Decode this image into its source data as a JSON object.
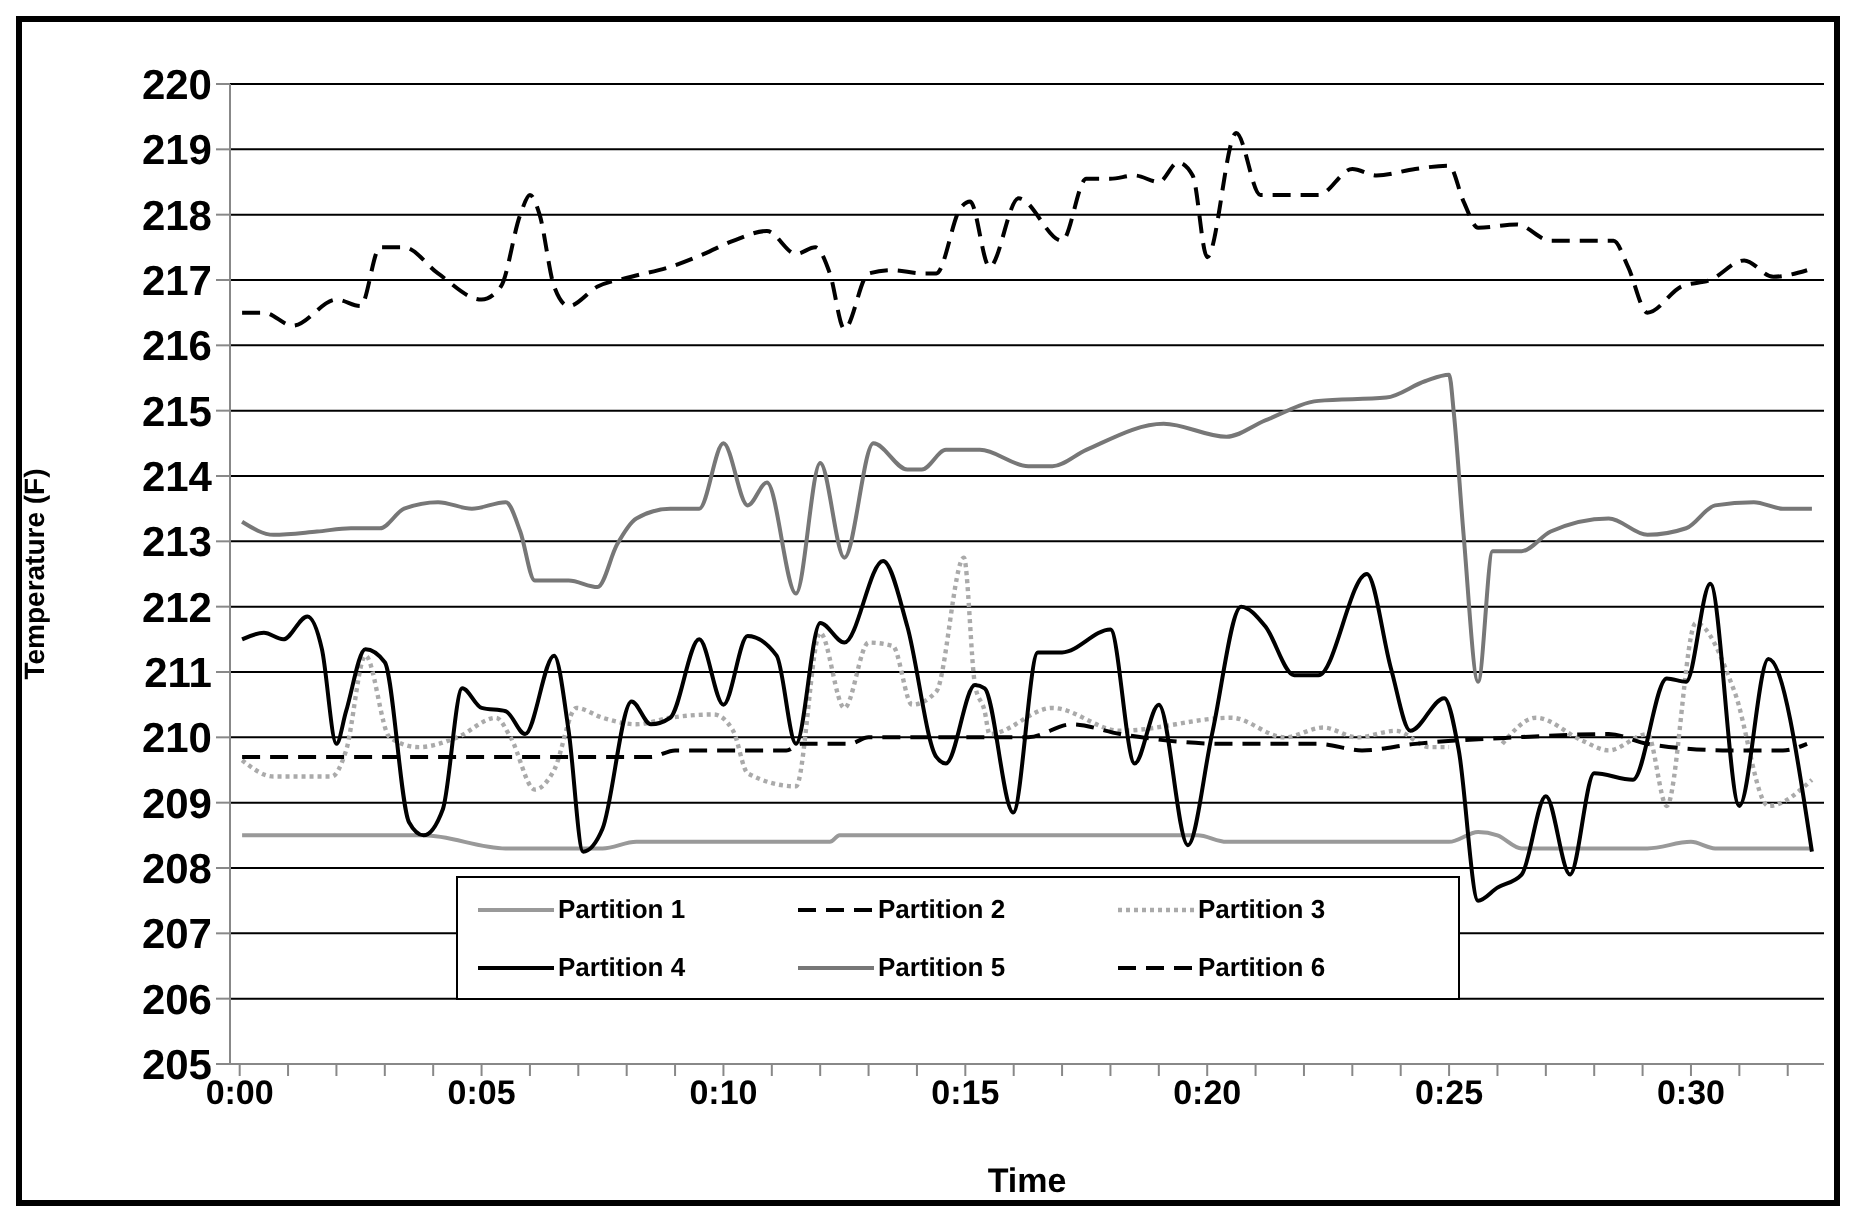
{
  "chart_data": {
    "type": "line",
    "xlabel": "Time",
    "ylabel": "Temperature (F)",
    "xlim": [
      -0.2,
      32.75
    ],
    "ylim": [
      205,
      220
    ],
    "yticks": [
      205,
      206,
      207,
      208,
      209,
      210,
      211,
      212,
      213,
      214,
      215,
      216,
      217,
      218,
      219,
      220
    ],
    "xticks": [
      {
        "value": 0,
        "label": "0:00"
      },
      {
        "value": 1,
        "label": null
      },
      {
        "value": 2,
        "label": null
      },
      {
        "value": 3,
        "label": null
      },
      {
        "value": 4,
        "label": null
      },
      {
        "value": 5,
        "label": "0:05"
      },
      {
        "value": 6,
        "label": null
      },
      {
        "value": 7,
        "label": null
      },
      {
        "value": 8,
        "label": null
      },
      {
        "value": 9,
        "label": null
      },
      {
        "value": 10,
        "label": "0:10"
      },
      {
        "value": 11,
        "label": null
      },
      {
        "value": 12,
        "label": null
      },
      {
        "value": 13,
        "label": null
      },
      {
        "value": 14,
        "label": null
      },
      {
        "value": 15,
        "label": "0:15"
      },
      {
        "value": 16,
        "label": null
      },
      {
        "value": 17,
        "label": null
      },
      {
        "value": 18,
        "label": null
      },
      {
        "value": 19,
        "label": null
      },
      {
        "value": 20,
        "label": "0:20"
      },
      {
        "value": 21,
        "label": null
      },
      {
        "value": 22,
        "label": null
      },
      {
        "value": 23,
        "label": null
      },
      {
        "value": 24,
        "label": null
      },
      {
        "value": 25,
        "label": "0:25"
      },
      {
        "value": 26,
        "label": null
      },
      {
        "value": 27,
        "label": null
      },
      {
        "value": 28,
        "label": null
      },
      {
        "value": 29,
        "label": null
      },
      {
        "value": 30,
        "label": "0:30"
      },
      {
        "value": 31,
        "label": null
      },
      {
        "value": 32,
        "label": null
      }
    ],
    "grid": "y",
    "legend": "bottom",
    "marker": "none",
    "series": [
      {
        "name": "Partition 1",
        "color": "#999999",
        "line_style": "solid",
        "x": [
          0.05,
          3.8,
          5.5,
          7.5,
          8.2,
          12.2,
          12.4,
          14.4,
          19.8,
          20.4,
          25.0,
          25.6,
          26.0,
          26.5,
          29.1,
          30.0,
          30.5,
          32.5
        ],
        "values": [
          208.5,
          208.5,
          208.3,
          208.3,
          208.4,
          208.4,
          208.5,
          208.5,
          208.5,
          208.4,
          208.4,
          208.55,
          208.5,
          208.3,
          208.3,
          208.4,
          208.3,
          208.3
        ]
      },
      {
        "name": "Partition 2",
        "color": "#000000",
        "line_style": "dashed",
        "x": [
          0.05,
          0.5,
          1.1,
          2.0,
          2.5,
          2.9,
          3.4,
          4.1,
          5.0,
          5.4,
          5.8,
          6.0,
          6.2,
          6.5,
          6.8,
          7.4,
          8.1,
          8.9,
          9.6,
          10.2,
          10.9,
          11.5,
          11.9,
          12.2,
          12.5,
          13.0,
          13.5,
          14.1,
          14.4,
          14.9,
          15.1,
          15.5,
          16.1,
          17.0,
          17.5,
          18.0,
          18.5,
          19.0,
          19.4,
          19.7,
          20.0,
          20.6,
          21.1,
          22.3,
          23.0,
          23.5,
          24.3,
          25.0,
          25.3,
          25.6,
          26.4,
          27.1,
          28.4,
          28.7,
          29.1,
          29.8,
          30.4,
          31.1,
          31.7,
          32.4
        ],
        "values": [
          216.5,
          216.5,
          216.3,
          216.7,
          216.6,
          217.5,
          217.5,
          217.1,
          216.7,
          216.9,
          218.0,
          218.3,
          218.0,
          216.9,
          216.6,
          216.9,
          217.05,
          217.2,
          217.4,
          217.6,
          217.75,
          217.4,
          217.5,
          217.1,
          216.25,
          217.1,
          217.15,
          217.1,
          217.1,
          218.1,
          218.2,
          217.2,
          218.25,
          217.6,
          218.55,
          218.55,
          218.6,
          218.5,
          218.8,
          218.6,
          217.35,
          219.25,
          218.3,
          218.3,
          218.7,
          218.6,
          218.7,
          218.75,
          218.2,
          217.8,
          217.85,
          217.6,
          217.6,
          217.2,
          216.5,
          216.9,
          217.0,
          217.3,
          217.05,
          217.15
        ]
      },
      {
        "name": "Partition 3",
        "color": "#aaaaaa",
        "line_style": "dotted",
        "x": [
          0.05,
          0.7,
          1.9,
          2.2,
          2.6,
          3.1,
          3.7,
          4.5,
          5.3,
          5.6,
          6.1,
          6.5,
          6.96,
          7.5,
          8.2,
          8.9,
          9.8,
          10.2,
          10.5,
          11.5,
          12.0,
          12.5,
          13.0,
          13.5,
          13.9,
          14.4,
          14.97,
          15.2,
          15.4,
          15.5,
          16.8,
          18.2,
          20.5,
          21.6,
          22.4,
          23.1,
          23.9,
          24.6,
          25.0,
          25.3,
          25.7,
          26.1,
          26.8,
          27.75,
          28.3,
          29.1,
          29.5,
          30.1,
          30.9,
          31.6,
          32.5
        ],
        "values": [
          209.65,
          209.4,
          209.4,
          209.8,
          211.25,
          210.0,
          209.85,
          210.0,
          210.3,
          210.0,
          209.2,
          209.5,
          210.45,
          210.3,
          210.2,
          210.3,
          210.35,
          210.1,
          209.45,
          209.25,
          211.6,
          210.45,
          211.45,
          211.4,
          210.5,
          210.7,
          212.75,
          210.8,
          210.4,
          210.05,
          210.45,
          210.1,
          210.3,
          210.0,
          210.15,
          210.0,
          210.1,
          209.85,
          209.85,
          null,
          null,
          209.9,
          210.3,
          209.95,
          209.8,
          210.05,
          208.95,
          211.75,
          210.7,
          208.95,
          209.35
        ]
      },
      {
        "name": "Partition 4",
        "color": "#000000",
        "line_style": "solid",
        "x": [
          0.05,
          0.5,
          0.9,
          1.4,
          1.7,
          2.0,
          2.2,
          2.6,
          3.0,
          3.5,
          3.8,
          4.2,
          4.6,
          5.0,
          5.5,
          5.9,
          6.5,
          6.8,
          7.1,
          7.5,
          8.1,
          8.5,
          8.9,
          9.5,
          10.0,
          10.5,
          11.1,
          11.5,
          12.0,
          12.5,
          13.3,
          13.8,
          14.4,
          14.6,
          15.2,
          15.4,
          15.99,
          16.5,
          17.0,
          18.0,
          18.5,
          19.0,
          19.6,
          20.1,
          20.7,
          21.2,
          21.8,
          22.3,
          23.3,
          23.8,
          24.2,
          24.9,
          25.2,
          25.6,
          26.0,
          26.5,
          27.0,
          27.5,
          28.0,
          28.8,
          29.5,
          29.9,
          30.4,
          31.0,
          31.6,
          32.5
        ],
        "values": [
          211.5,
          211.6,
          211.5,
          211.85,
          211.35,
          209.9,
          210.4,
          211.35,
          211.15,
          208.7,
          208.5,
          208.9,
          210.75,
          210.45,
          210.4,
          210.05,
          211.25,
          210.1,
          208.25,
          208.6,
          210.55,
          210.2,
          210.3,
          211.5,
          210.5,
          211.55,
          211.25,
          209.9,
          211.75,
          211.45,
          212.7,
          211.7,
          209.7,
          209.6,
          210.8,
          210.75,
          208.85,
          211.3,
          211.3,
          211.65,
          209.6,
          210.5,
          208.35,
          210.05,
          212.0,
          211.7,
          210.95,
          210.95,
          212.5,
          211.05,
          210.1,
          210.6,
          209.8,
          207.5,
          207.7,
          207.9,
          209.1,
          207.9,
          209.45,
          209.35,
          210.9,
          210.85,
          212.35,
          208.95,
          211.2,
          208.25
        ]
      },
      {
        "name": "Partition 5",
        "color": "#777777",
        "line_style": "solid",
        "x": [
          0.05,
          0.7,
          1.6,
          2.3,
          2.9,
          3.4,
          4.1,
          4.8,
          5.5,
          5.8,
          6.1,
          6.8,
          7.4,
          7.8,
          8.2,
          8.9,
          9.5,
          10.0,
          10.5,
          10.9,
          11.5,
          12.0,
          12.5,
          13.1,
          13.8,
          14.1,
          14.6,
          15.3,
          16.3,
          16.8,
          17.5,
          19.1,
          20.4,
          21.2,
          22.3,
          23.7,
          24.5,
          25.0,
          25.1,
          25.3,
          25.6,
          25.9,
          26.5,
          27.1,
          28.3,
          29.1,
          29.9,
          30.5,
          31.3,
          31.9,
          32.5
        ],
        "values": [
          213.3,
          213.1,
          213.15,
          213.2,
          213.2,
          213.5,
          213.6,
          213.5,
          213.6,
          213.15,
          212.4,
          212.4,
          212.3,
          212.95,
          213.35,
          213.5,
          213.5,
          214.5,
          213.55,
          213.9,
          212.2,
          214.2,
          212.75,
          214.5,
          214.1,
          214.1,
          214.4,
          214.4,
          214.15,
          214.15,
          214.4,
          214.8,
          214.6,
          214.85,
          215.15,
          215.2,
          215.45,
          215.55,
          214.95,
          213.1,
          210.85,
          212.85,
          212.85,
          213.15,
          213.35,
          213.1,
          213.2,
          213.55,
          213.6,
          213.5,
          213.5
        ]
      },
      {
        "name": "Partition 6",
        "color": "#000000",
        "line_style": "dashed",
        "x": [
          0.05,
          8.5,
          9.0,
          11.3,
          11.6,
          12.6,
          13.0,
          14.4,
          16.3,
          17.2,
          18.2,
          20.4,
          22.3,
          23.2,
          24.3,
          26.4,
          28.3,
          29.1,
          30.8,
          31.9,
          32.4
        ],
        "values": [
          209.7,
          209.7,
          209.8,
          209.8,
          209.9,
          209.9,
          210.0,
          210.0,
          210.0,
          210.2,
          210.05,
          209.9,
          209.9,
          209.8,
          209.9,
          210.0,
          210.05,
          209.9,
          209.8,
          209.8,
          209.9
        ]
      }
    ]
  }
}
